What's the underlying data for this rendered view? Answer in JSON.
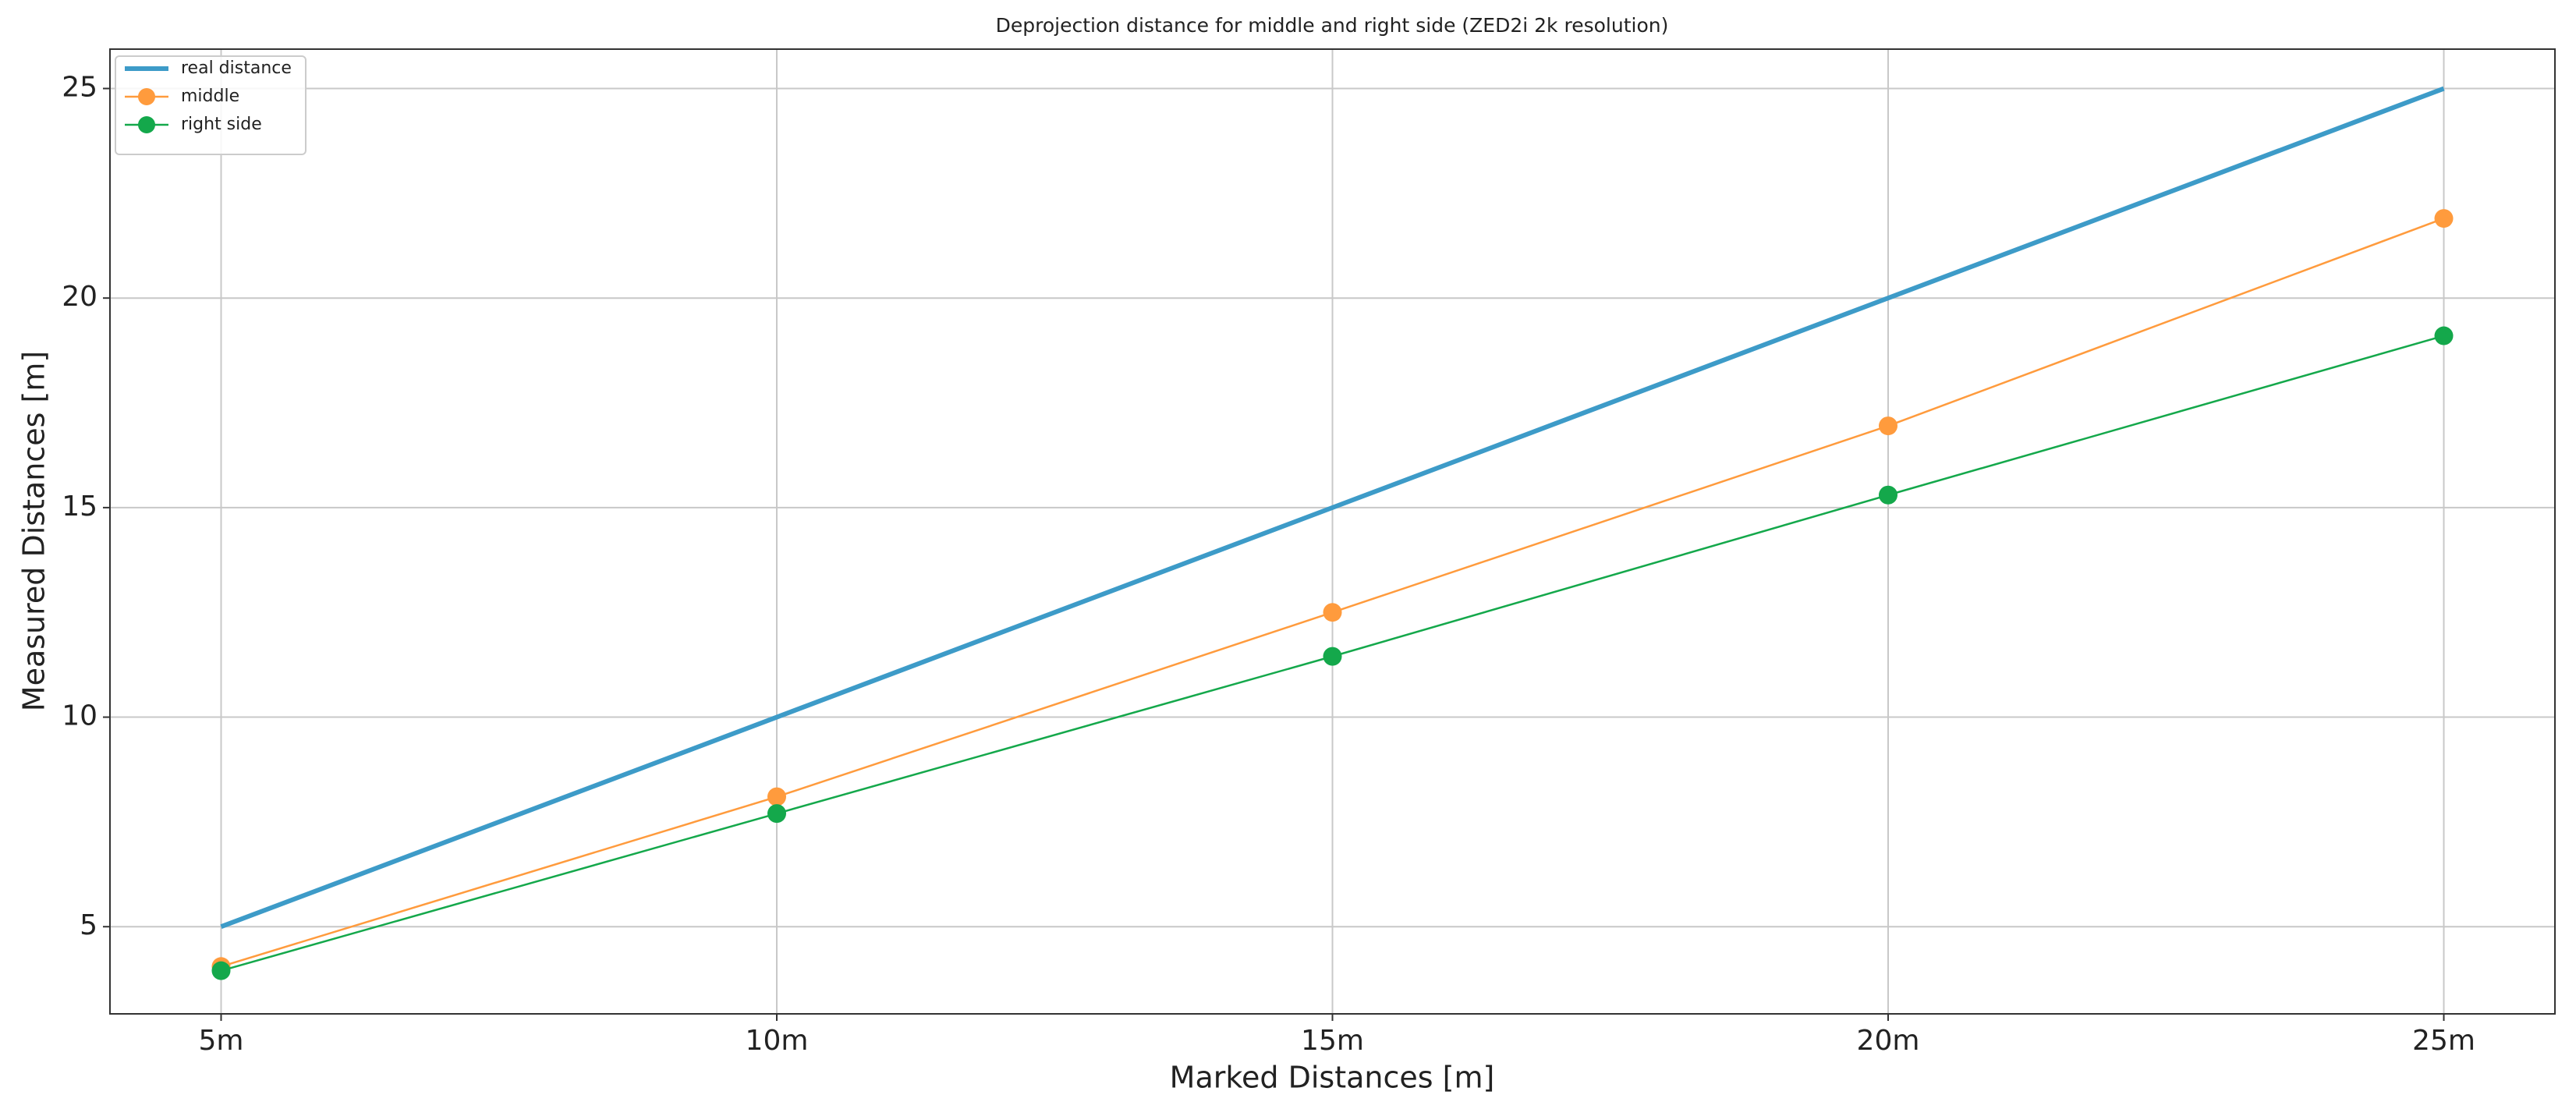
{
  "chart_data": {
    "type": "line",
    "title": "Deprojection distance for middle and right side (ZED2i 2k resolution)",
    "x_label": "Marked Distances [m]",
    "y_label": "Measured Distances [m]",
    "categories": [
      "5m",
      "10m",
      "15m",
      "20m",
      "25m"
    ],
    "series": [
      {
        "name": "real distance",
        "color": "#3d9bc8",
        "values": [
          5,
          10,
          15,
          20,
          25
        ],
        "marker": false,
        "width": 6
      },
      {
        "name": "middle",
        "color": "#ff9b3d",
        "values": [
          4.05,
          8.1,
          12.5,
          16.95,
          21.9
        ],
        "marker": true,
        "width": 2.5
      },
      {
        "name": "right side",
        "color": "#14a84b",
        "values": [
          3.95,
          7.7,
          11.45,
          15.3,
          19.1
        ],
        "marker": true,
        "width": 2.5
      }
    ],
    "ylim": [
      2.92,
      25.94
    ],
    "yticks": [
      5,
      10,
      15,
      20,
      25
    ],
    "grid": true,
    "legend": "upper-left"
  }
}
